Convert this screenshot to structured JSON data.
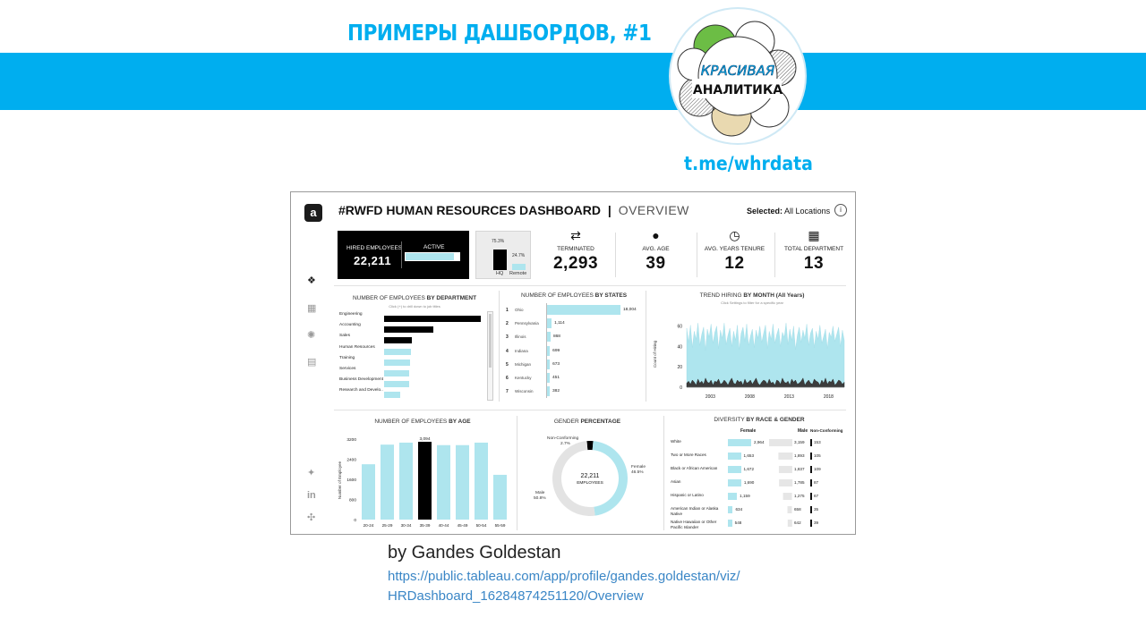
{
  "slide": {
    "title": "ПРИМЕРЫ ДАШБОРДОВ, #1",
    "logo_line1": "КРАСИВАЯ",
    "logo_line2": "АНАЛИТИКА",
    "telegram": "t.me/whrdata",
    "author": "by Gandes Goldestan",
    "url_line1": "https://public.tableau.com/app/profile/gandes.goldestan/viz/",
    "url_line2": "HRDashboard_16284874251120/Overview",
    "band_color": "#00aeef"
  },
  "dashboard": {
    "title": "#RWFD HUMAN RESOURCES DASHBOARD",
    "separator": "|",
    "subtitle": "OVERVIEW",
    "selected_label": "Selected:",
    "selected_value": "All Locations",
    "info": "i",
    "logo_letter": "a",
    "sidebar_icons": [
      "grid-icon",
      "table-icon",
      "gear-icon",
      "document-icon",
      "twitter-icon",
      "linkedin-icon",
      "tableau-icon"
    ],
    "hired": {
      "label": "HIRED EMPLOYEES",
      "value": "22,211",
      "active_label": "ACTIVE",
      "active_fraction": 0.895
    },
    "location": {
      "hq_pct": "75.3%",
      "remote_pct": "24.7%",
      "hq_label": "HQ",
      "remote_label": "Remote",
      "hq": 0.753,
      "remote": 0.247
    },
    "kpis": [
      {
        "icon": "swap-icon",
        "glyph": "⇄",
        "label": "TERMINATED",
        "value": "2,293"
      },
      {
        "icon": "person-icon",
        "glyph": "●",
        "label": "AVG. AGE",
        "value": "39"
      },
      {
        "icon": "clock-icon",
        "glyph": "◷",
        "label": "AVG. YEARS TENURE",
        "value": "12"
      },
      {
        "icon": "building-icon",
        "glyph": "▦",
        "label": "TOTAL DEPARTMENT",
        "value": "13"
      }
    ],
    "department": {
      "title_pre": "NUMBER OF EMPLOYEES",
      "title_bold": "BY DEPARTMENT",
      "hint": "Click (+) to drill down to job titles",
      "rows": [
        {
          "label": "Engineering",
          "value": 0.94,
          "color": "#000000"
        },
        {
          "label": "Accounting",
          "value": 0.48,
          "color": "#000000"
        },
        {
          "label": "Sales",
          "value": 0.27,
          "color": "#000000"
        },
        {
          "label": "Human Resources",
          "value": 0.26,
          "color": "#aee5ee"
        },
        {
          "label": "Training",
          "value": 0.25,
          "color": "#aee5ee"
        },
        {
          "label": "Services",
          "value": 0.24,
          "color": "#aee5ee"
        },
        {
          "label": "Business Development",
          "value": 0.24,
          "color": "#aee5ee"
        },
        {
          "label": "Research and Develo..",
          "value": 0.16,
          "color": "#aee5ee"
        }
      ]
    },
    "states": {
      "title_pre": "NUMBER OF EMPLOYEES",
      "title_bold": "BY STATES",
      "rows": [
        {
          "rank": "1",
          "name": "Ohio",
          "value": 18004,
          "label": "18,004"
        },
        {
          "rank": "2",
          "name": "Pennsylvania",
          "value": 1114,
          "label": "1,114"
        },
        {
          "rank": "3",
          "name": "Illinois",
          "value": 868,
          "label": "868"
        },
        {
          "rank": "4",
          "name": "Indiana",
          "value": 699,
          "label": "699"
        },
        {
          "rank": "5",
          "name": "Michigan",
          "value": 673,
          "label": "673"
        },
        {
          "rank": "6",
          "name": "Kentucky",
          "value": 451,
          "label": "451"
        },
        {
          "rank": "7",
          "name": "Wisconsin",
          "value": 382,
          "label": "382"
        }
      ]
    },
    "trend": {
      "title_pre": "TREND HIRING",
      "title_bold": "BY MONTH (All Years)",
      "hint": "Click Settings to filter for a specific year",
      "ylabel": "Count of Hiring",
      "yticks": [
        "60",
        "40",
        "20",
        "0"
      ],
      "xticks": [
        "2003",
        "2008",
        "2013",
        "2018"
      ]
    },
    "age": {
      "title_pre": "NUMBER OF EMPLOYEES",
      "title_bold": "BY AGE",
      "ylabel": "Number of Employee",
      "yticks": [
        "3200",
        "2400",
        "1600",
        "800",
        "0"
      ],
      "peak_label": "3,094"
    },
    "gender": {
      "title_pre": "GENDER",
      "title_bold": "PERCENTAGE",
      "center_value": "22,211",
      "center_label": "EMPLOYEES",
      "female_label": "Female",
      "female_pct": "46.5%",
      "male_label": "Male",
      "male_pct": "50.8%",
      "nc_label": "Non-Conforming",
      "nc_pct": "2.7%"
    },
    "diversity": {
      "title_pre": "DIVERSITY",
      "title_bold": "BY RACE & GENDER",
      "col_female": "Female",
      "col_male": "Male",
      "col_nc": "Non-Conforming",
      "rows": [
        {
          "label": "White",
          "female": "2,964",
          "male": "3,159",
          "nc": "153",
          "fw": 1.0,
          "mw": 1.0
        },
        {
          "label": "Two or More Races",
          "female": "1,653",
          "male": "1,893",
          "nc": "105",
          "fw": 0.56,
          "mw": 0.6
        },
        {
          "label": "Black or African American",
          "female": "1,672",
          "male": "1,837",
          "nc": "109",
          "fw": 0.56,
          "mw": 0.58
        },
        {
          "label": "Asian",
          "female": "1,690",
          "male": "1,785",
          "nc": "87",
          "fw": 0.57,
          "mw": 0.57
        },
        {
          "label": "Hispanic or Latino",
          "female": "1,159",
          "male": "1,275",
          "nc": "67",
          "fw": 0.39,
          "mw": 0.4
        },
        {
          "label": "American Indian or Alaska Native",
          "female": "634",
          "male": "658",
          "nc": "35",
          "fw": 0.21,
          "mw": 0.21
        },
        {
          "label": "Native Hawaiian or Other Pacific Islander",
          "female": "548",
          "male": "642",
          "nc": "39",
          "fw": 0.18,
          "mw": 0.2
        }
      ]
    }
  },
  "chart_data": [
    {
      "type": "bar",
      "title": "NUMBER OF EMPLOYEES BY AGE",
      "ylabel": "Number of Employee",
      "categories": [
        "20-24",
        "25-29",
        "30-34",
        "35-39",
        "40-44",
        "45-49",
        "50-54",
        "55-59"
      ],
      "values": [
        2200,
        2980,
        3060,
        3094,
        2960,
        2960,
        3060,
        1780
      ],
      "ylim": [
        0,
        3400
      ],
      "colors": [
        "#aee5ee",
        "#aee5ee",
        "#aee5ee",
        "#000000",
        "#aee5ee",
        "#aee5ee",
        "#aee5ee",
        "#aee5ee"
      ]
    },
    {
      "type": "pie",
      "title": "GENDER PERCENTAGE",
      "categories": [
        "Female",
        "Male",
        "Non-Conforming"
      ],
      "values": [
        46.5,
        50.8,
        2.7
      ],
      "colors": [
        "#aee5ee",
        "#e3e3e3",
        "#000000"
      ]
    },
    {
      "type": "area",
      "title": "TREND HIRING BY MONTH (All Years)",
      "ylabel": "Count of Hiring",
      "ylim": [
        0,
        65
      ],
      "x_range": [
        2000,
        2020
      ],
      "series": [
        {
          "values": [
            58,
            44,
            61,
            39,
            55,
            47,
            63,
            41,
            52,
            59,
            36,
            57,
            49,
            62,
            43,
            54,
            60,
            38,
            56,
            48,
            63,
            42,
            51,
            58,
            40,
            55,
            46,
            61,
            37,
            53,
            59,
            45,
            62,
            41,
            50,
            57,
            39,
            56,
            48,
            60,
            44,
            53,
            61,
            38,
            55,
            47,
            62,
            43,
            52,
            58,
            40,
            54,
            49,
            63,
            42,
            57,
            46,
            60,
            37,
            51,
            59,
            44,
            56,
            48,
            62,
            41,
            53,
            58,
            39,
            55,
            47,
            61,
            43,
            50,
            57,
            38,
            54,
            49,
            60,
            45,
            52,
            59,
            40,
            56,
            46
          ]
        },
        {
          "values": [
            4,
            6,
            3,
            7,
            5,
            2,
            8,
            4,
            6,
            3,
            9,
            5,
            4,
            7,
            2,
            6,
            5,
            8,
            3,
            4,
            7,
            5,
            2,
            6,
            9,
            4,
            3,
            7,
            5,
            6,
            2,
            8,
            4,
            5,
            7,
            3,
            6,
            9,
            4,
            2,
            5,
            7,
            6,
            3,
            8,
            4,
            5,
            2,
            7,
            6,
            3,
            9,
            5,
            4,
            6,
            2,
            8,
            5,
            7,
            3,
            4,
            6,
            9,
            2,
            5,
            7,
            4,
            3,
            8,
            6,
            5,
            2,
            7,
            4,
            9,
            3,
            6,
            5,
            8,
            2,
            4,
            7,
            6,
            3,
            5
          ]
        }
      ]
    }
  ]
}
